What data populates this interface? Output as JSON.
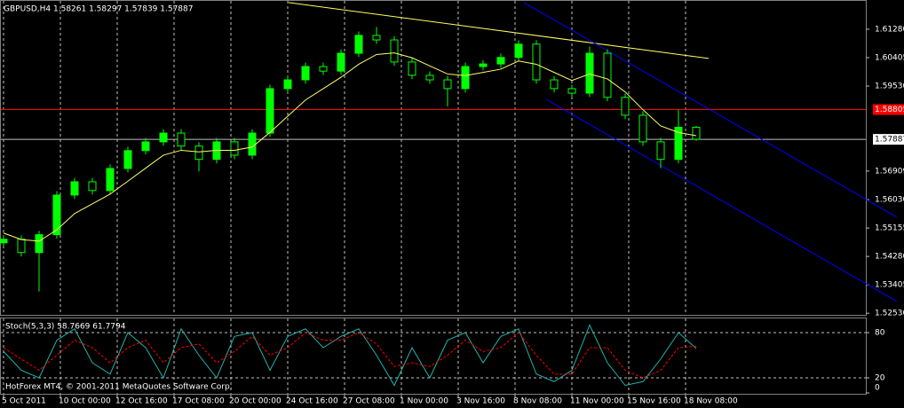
{
  "chart_data": {
    "type": "candlestick",
    "title": "GBPUSD,H4  1.58261 1.58297 1.57839 1.57887",
    "x": [
      1,
      6,
      11,
      16,
      21,
      26,
      31,
      36,
      41,
      46,
      51,
      56,
      61,
      66,
      71,
      76,
      81,
      86,
      91,
      96,
      101,
      106,
      111,
      116,
      121,
      126,
      131,
      136,
      141,
      146,
      151,
      156,
      161,
      166,
      171,
      176,
      181,
      186,
      191,
      196
    ],
    "open": [
      1.547,
      1.5481,
      1.544,
      1.5495,
      1.5617,
      1.5658,
      1.5631,
      1.5699,
      1.5754,
      1.5781,
      1.5808,
      1.5768,
      1.5727,
      1.5781,
      1.574,
      1.5808,
      1.5945,
      1.5972,
      1.6013,
      1.5999,
      1.6054,
      1.6109,
      1.6095,
      1.6027,
      1.5986,
      1.5972,
      1.5945,
      1.6013,
      1.6021,
      1.6041,
      1.6082,
      1.5972,
      1.5945,
      1.5931,
      1.6054,
      1.5918,
      1.5863,
      1.5781,
      1.5727,
      1.5826
    ],
    "high": [
      1.5493,
      1.5493,
      1.5507,
      1.5629,
      1.567,
      1.567,
      1.5711,
      1.5766,
      1.5793,
      1.582,
      1.582,
      1.578,
      1.5793,
      1.5793,
      1.582,
      1.5957,
      1.5984,
      1.6025,
      1.6025,
      1.6066,
      1.6121,
      1.6135,
      1.6107,
      1.6039,
      1.5998,
      1.5984,
      1.6025,
      1.6033,
      1.6053,
      1.6094,
      1.6094,
      1.5984,
      1.5957,
      1.6075,
      1.6066,
      1.593,
      1.5875,
      1.5793,
      1.588,
      1.583
    ],
    "low": [
      1.5458,
      1.5428,
      1.532,
      1.5483,
      1.5605,
      1.5619,
      1.5619,
      1.5687,
      1.5742,
      1.5769,
      1.5756,
      1.569,
      1.5715,
      1.5728,
      1.5728,
      1.5796,
      1.5933,
      1.596,
      1.5987,
      1.5987,
      1.6042,
      1.6083,
      1.6015,
      1.5974,
      1.596,
      1.589,
      1.5933,
      1.6001,
      1.6009,
      1.6029,
      1.596,
      1.5933,
      1.5919,
      1.5919,
      1.5906,
      1.5851,
      1.5769,
      1.57,
      1.5715,
      1.5784
    ],
    "close": [
      1.5481,
      1.544,
      1.5495,
      1.5617,
      1.5658,
      1.5631,
      1.5699,
      1.5754,
      1.5781,
      1.5808,
      1.5768,
      1.5727,
      1.5781,
      1.574,
      1.5808,
      1.5945,
      1.5972,
      1.6013,
      1.5999,
      1.6054,
      1.6109,
      1.6095,
      1.6027,
      1.5986,
      1.5972,
      1.5945,
      1.6013,
      1.6021,
      1.6041,
      1.6082,
      1.5972,
      1.5945,
      1.5931,
      1.6054,
      1.5918,
      1.5863,
      1.5781,
      1.5727,
      1.5826,
      1.5789
    ],
    "color": "#00ff00",
    "ma": {
      "color": "#ffff66",
      "values": [
        1.55,
        1.548,
        1.5475,
        1.551,
        1.556,
        1.559,
        1.562,
        1.566,
        1.57,
        1.574,
        1.5755,
        1.575,
        1.5755,
        1.5755,
        1.5765,
        1.581,
        1.586,
        1.591,
        1.5945,
        1.598,
        1.602,
        1.605,
        1.6055,
        1.604,
        1.6015,
        1.599,
        1.5985,
        1.5995,
        1.6005,
        1.603,
        1.602,
        1.5995,
        1.597,
        1.599,
        1.5975,
        1.5935,
        1.588,
        1.583,
        1.581,
        1.58
      ]
    },
    "trendlines": [
      {
        "color": "#ffff66",
        "start": [
          81.25,
          1.621
        ],
        "end": [
          199.5,
          1.6038
        ]
      },
      {
        "color": "#0000ff",
        "start": [
          147.5,
          1.621
        ],
        "end": [
          252.5,
          1.5549
        ]
      },
      {
        "color": "#0000ff",
        "start": [
          153.75,
          1.5912
        ],
        "end": [
          252.5,
          1.5289
        ]
      }
    ],
    "price_lines": [
      {
        "value": 1.58805,
        "label": "1.58805",
        "color": "#ff0000"
      },
      {
        "value": 1.57887,
        "label": "1.57887",
        "color": "#c0c0c0"
      }
    ],
    "xlim": [
      0,
      254
    ],
    "xticks": [
      {
        "value": 1,
        "label": "5 Oct 2011"
      },
      {
        "value": 17,
        "label": "10 Oct 00:00"
      },
      {
        "value": 33,
        "label": "12 Oct 16:00"
      },
      {
        "value": 49,
        "label": "17 Oct 08:00"
      },
      {
        "value": 65,
        "label": "20 Oct 00:00"
      },
      {
        "value": 81,
        "label": "24 Oct 16:00"
      },
      {
        "value": 97,
        "label": "27 Oct 08:00"
      },
      {
        "value": 113,
        "label": "1 Nov 00:00"
      },
      {
        "value": 129,
        "label": "3 Nov 16:00"
      },
      {
        "value": 145,
        "label": "8 Nov 08:00"
      },
      {
        "value": 161,
        "label": "11 Nov 00:00"
      },
      {
        "value": 177,
        "label": "15 Nov 16:00"
      },
      {
        "value": 193,
        "label": "18 Nov 08:00"
      }
    ],
    "ylim": [
      1.5248,
      1.6218
    ],
    "yticks": [
      {
        "value": 1.6128,
        "label": "1.61280"
      },
      {
        "value": 1.60405,
        "label": "1.60405"
      },
      {
        "value": 1.5953,
        "label": "1.59530"
      },
      {
        "value": 1.56909,
        "label": "1.56909"
      },
      {
        "value": 1.5603,
        "label": "1.56030"
      },
      {
        "value": 1.55155,
        "label": "1.55155"
      },
      {
        "value": 1.5428,
        "label": "1.54280"
      },
      {
        "value": 1.53405,
        "label": "1.53405"
      },
      {
        "value": 1.5253,
        "label": "1.52530"
      }
    ],
    "grid": true,
    "stochastic": {
      "label": "Stoch(5,3,3) 58.7669 61.7794",
      "ylim": [
        0,
        100
      ],
      "yticks": [
        0,
        20,
        80
      ],
      "levels": [
        20,
        80
      ],
      "series": [
        {
          "color": "#20b2aa",
          "values": [
            55,
            30,
            20,
            70,
            85,
            40,
            25,
            80,
            60,
            20,
            85,
            50,
            20,
            75,
            80,
            30,
            75,
            85,
            60,
            75,
            85,
            50,
            10,
            60,
            20,
            70,
            80,
            40,
            75,
            85,
            25,
            15,
            30,
            90,
            40,
            10,
            15,
            45,
            80,
            59
          ]
        },
        {
          "color": "#ff0000",
          "values": [
            60,
            45,
            30,
            50,
            70,
            60,
            40,
            60,
            70,
            40,
            60,
            65,
            40,
            55,
            75,
            50,
            60,
            80,
            70,
            70,
            80,
            65,
            35,
            40,
            35,
            50,
            70,
            55,
            60,
            80,
            50,
            25,
            25,
            60,
            60,
            30,
            20,
            30,
            60,
            62
          ]
        }
      ]
    },
    "footer": "HotForex MT4, © 2001-2011 MetaQuotes Software Corp."
  }
}
